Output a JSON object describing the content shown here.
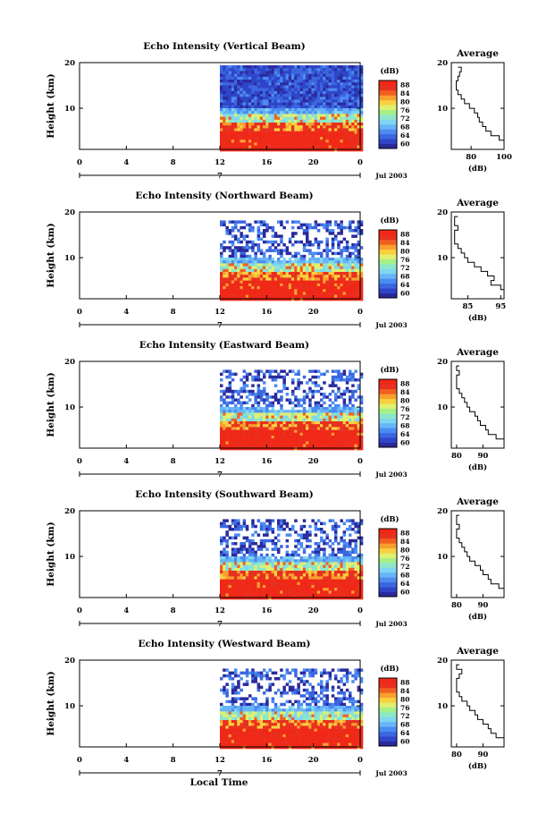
{
  "colors": {
    "colorbar": [
      "#2a2a9c",
      "#2f45c8",
      "#3b66e0",
      "#4c8cf0",
      "#68b4f8",
      "#7fd6f0",
      "#8ee6c8",
      "#a6f08a",
      "#e0f070",
      "#f8d040",
      "#f8a030",
      "#f06020",
      "#e83020",
      "#f02818"
    ]
  },
  "footer": {
    "xlabel": "Local Time"
  },
  "chart_data": [
    {
      "type": "heatmap",
      "title": "Echo Intensity (Vertical Beam)",
      "ylabel": "Height (km)",
      "xlabel": "Local Time",
      "x_ticks": [
        "0",
        "4",
        "8",
        "12",
        "16",
        "20",
        "0"
      ],
      "y_ticks": [
        "20",
        "10"
      ],
      "ylim": [
        1,
        20
      ],
      "date_marker": "7",
      "date_text": "Jul 2003",
      "colorbar": {
        "unit": "(dB)",
        "ticks": [
          "88",
          "84",
          "80",
          "76",
          "72",
          "68",
          "64",
          "60"
        ]
      },
      "data_start_hour": 12,
      "data_end_hour": 24,
      "average": {
        "title": "Average",
        "xlabel": "(dB)",
        "x_ticks": [
          "80",
          "100"
        ],
        "x_tick_values": [
          80,
          100
        ],
        "xlim": [
          68,
          100
        ],
        "y_ticks": [
          "20",
          "10"
        ],
        "height_km": [
          2,
          3,
          4,
          5,
          6,
          7,
          8,
          9,
          10,
          11,
          12,
          13,
          14,
          15,
          16,
          17,
          18,
          19
        ],
        "values_db": [
          100,
          97,
          92,
          89,
          87,
          85,
          84,
          82,
          79,
          76,
          74,
          72,
          71,
          71,
          72,
          73,
          74,
          72
        ]
      }
    },
    {
      "type": "heatmap",
      "title": "Echo Intensity (Northward Beam)",
      "ylabel": "Height (km)",
      "xlabel": "Local Time",
      "x_ticks": [
        "0",
        "4",
        "8",
        "12",
        "16",
        "20",
        "0"
      ],
      "y_ticks": [
        "20",
        "10"
      ],
      "ylim": [
        1,
        20
      ],
      "date_marker": "7",
      "date_text": "Jul 2003",
      "colorbar": {
        "unit": "(dB)",
        "ticks": [
          "88",
          "84",
          "80",
          "76",
          "72",
          "68",
          "64",
          "60"
        ]
      },
      "data_start_hour": 12,
      "data_end_hour": 24,
      "average": {
        "title": "Average",
        "xlabel": "(dB)",
        "x_ticks": [
          "85",
          "95"
        ],
        "x_tick_values": [
          85,
          95
        ],
        "xlim": [
          80,
          96
        ],
        "y_ticks": [
          "20",
          "10"
        ],
        "height_km": [
          2,
          3,
          4,
          5,
          6,
          7,
          8,
          9,
          10,
          11,
          12,
          13,
          14,
          15,
          16,
          17,
          18,
          19
        ],
        "values_db": [
          96,
          95,
          92,
          93,
          91,
          89,
          87,
          85,
          84,
          83,
          82,
          81,
          81,
          81,
          82,
          81,
          81,
          82
        ]
      }
    },
    {
      "type": "heatmap",
      "title": "Echo Intensity (Eastward Beam)",
      "ylabel": "Height (km)",
      "xlabel": "Local Time",
      "x_ticks": [
        "0",
        "4",
        "8",
        "12",
        "16",
        "20",
        "0"
      ],
      "y_ticks": [
        "20",
        "10"
      ],
      "ylim": [
        1,
        20
      ],
      "date_marker": "7",
      "date_text": "Jul 2003",
      "colorbar": {
        "unit": "(dB)",
        "ticks": [
          "88",
          "84",
          "80",
          "76",
          "72",
          "68",
          "64",
          "60"
        ]
      },
      "data_start_hour": 12,
      "data_end_hour": 24,
      "average": {
        "title": "Average",
        "xlabel": "(dB)",
        "x_ticks": [
          "80",
          "90"
        ],
        "x_tick_values": [
          80,
          90
        ],
        "xlim": [
          78,
          98
        ],
        "y_ticks": [
          "20",
          "10"
        ],
        "height_km": [
          2,
          3,
          4,
          5,
          6,
          7,
          8,
          9,
          10,
          11,
          12,
          13,
          14,
          15,
          16,
          17,
          18,
          19
        ],
        "values_db": [
          98,
          95,
          92,
          91,
          89,
          88,
          87,
          85,
          84,
          83,
          82,
          81,
          80,
          80,
          80,
          81,
          80,
          81
        ]
      }
    },
    {
      "type": "heatmap",
      "title": "Echo Intensity (Southward Beam)",
      "ylabel": "Height (km)",
      "xlabel": "Local Time",
      "x_ticks": [
        "0",
        "4",
        "8",
        "12",
        "16",
        "20",
        "0"
      ],
      "y_ticks": [
        "20",
        "10"
      ],
      "ylim": [
        1,
        20
      ],
      "date_marker": "7",
      "date_text": "Jul 2003",
      "colorbar": {
        "unit": "(dB)",
        "ticks": [
          "88",
          "84",
          "80",
          "76",
          "72",
          "68",
          "64",
          "60"
        ]
      },
      "data_start_hour": 12,
      "data_end_hour": 24,
      "average": {
        "title": "Average",
        "xlabel": "(dB)",
        "x_ticks": [
          "80",
          "90"
        ],
        "x_tick_values": [
          80,
          90
        ],
        "xlim": [
          78,
          98
        ],
        "y_ticks": [
          "20",
          "10"
        ],
        "height_km": [
          2,
          3,
          4,
          5,
          6,
          7,
          8,
          9,
          10,
          11,
          12,
          13,
          14,
          15,
          16,
          17,
          18,
          19
        ],
        "values_db": [
          98,
          96,
          93,
          92,
          90,
          89,
          87,
          85,
          84,
          83,
          82,
          81,
          80,
          80,
          81,
          80,
          80,
          81
        ]
      }
    },
    {
      "type": "heatmap",
      "title": "Echo Intensity (Westward Beam)",
      "ylabel": "Height (km)",
      "xlabel": "Local Time",
      "x_ticks": [
        "0",
        "4",
        "8",
        "12",
        "16",
        "20",
        "0"
      ],
      "y_ticks": [
        "20",
        "10"
      ],
      "ylim": [
        1,
        20
      ],
      "date_marker": "7",
      "date_text": "Jul 2003",
      "colorbar": {
        "unit": "(dB)",
        "ticks": [
          "88",
          "84",
          "80",
          "76",
          "72",
          "68",
          "64",
          "60"
        ]
      },
      "data_start_hour": 12,
      "data_end_hour": 24,
      "average": {
        "title": "Average",
        "xlabel": "(dB)",
        "x_ticks": [
          "80",
          "90"
        ],
        "x_tick_values": [
          80,
          90
        ],
        "xlim": [
          78,
          98
        ],
        "y_ticks": [
          "20",
          "10"
        ],
        "height_km": [
          2,
          3,
          4,
          5,
          6,
          7,
          8,
          9,
          10,
          11,
          12,
          13,
          14,
          15,
          16,
          17,
          18,
          19
        ],
        "values_db": [
          98,
          95,
          93,
          92,
          90,
          88,
          87,
          85,
          84,
          82,
          81,
          80,
          80,
          80,
          81,
          82,
          80,
          81
        ]
      }
    }
  ]
}
